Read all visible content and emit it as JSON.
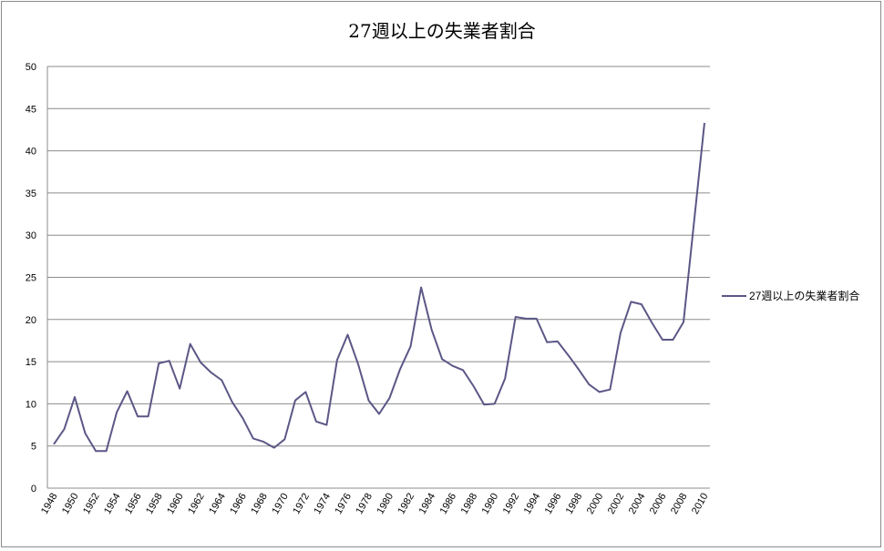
{
  "chart_data": {
    "type": "line",
    "title": "27週以上の失業者割合",
    "xlabel": "",
    "ylabel": "",
    "ylim": [
      0,
      50
    ],
    "yticks": [
      "0",
      "5",
      "10",
      "15",
      "20",
      "25",
      "30",
      "35",
      "40",
      "45",
      "50"
    ],
    "xticks": [
      "1948",
      "1950",
      "1952",
      "1954",
      "1956",
      "1958",
      "1960",
      "1962",
      "1964",
      "1966",
      "1968",
      "1970",
      "1972",
      "1974",
      "1976",
      "1978",
      "1980",
      "1982",
      "1984",
      "1986",
      "1988",
      "1990",
      "1992",
      "1994",
      "1996",
      "1998",
      "2000",
      "2002",
      "2004",
      "2006",
      "2008",
      "2010"
    ],
    "x": [
      1948,
      1949,
      1950,
      1951,
      1952,
      1953,
      1954,
      1955,
      1956,
      1957,
      1958,
      1959,
      1960,
      1961,
      1962,
      1963,
      1964,
      1965,
      1966,
      1967,
      1968,
      1969,
      1970,
      1971,
      1972,
      1973,
      1974,
      1975,
      1976,
      1977,
      1978,
      1979,
      1980,
      1981,
      1982,
      1983,
      1984,
      1985,
      1986,
      1987,
      1988,
      1989,
      1990,
      1991,
      1992,
      1993,
      1994,
      1995,
      1996,
      1997,
      1998,
      1999,
      2000,
      2001,
      2002,
      2003,
      2004,
      2005,
      2006,
      2007,
      2008,
      2009,
      2010
    ],
    "series": [
      {
        "name": "27週以上の失業者割合",
        "color": "#5b5786",
        "values": [
          5.2,
          7.0,
          10.8,
          6.5,
          4.4,
          4.4,
          9.0,
          11.5,
          8.5,
          8.5,
          14.8,
          15.1,
          11.8,
          17.1,
          14.9,
          13.7,
          12.8,
          10.2,
          8.3,
          5.9,
          5.5,
          4.8,
          5.8,
          10.4,
          11.4,
          7.9,
          7.5,
          15.2,
          18.2,
          14.7,
          10.4,
          8.8,
          10.7,
          14.1,
          16.8,
          23.8,
          18.8,
          15.3,
          14.5,
          14.0,
          12.1,
          9.9,
          10.0,
          13.0,
          20.3,
          20.1,
          20.1,
          17.3,
          17.4,
          15.8,
          14.1,
          12.3,
          11.4,
          11.7,
          18.4,
          22.1,
          21.8,
          19.6,
          17.6,
          17.6,
          19.7,
          31.5,
          43.3
        ]
      }
    ],
    "grid": true,
    "legend_position": "right"
  }
}
